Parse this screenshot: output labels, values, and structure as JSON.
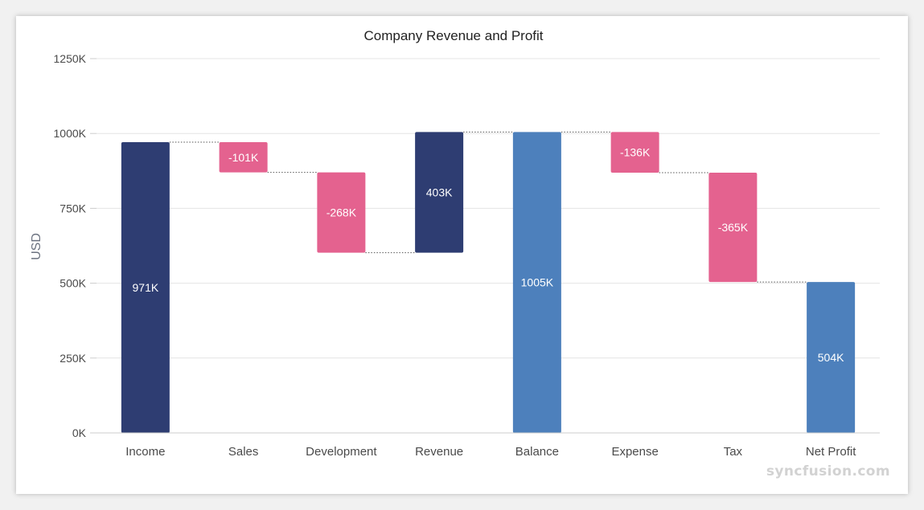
{
  "watermark": "syncfusion.com",
  "colors": {
    "positive": "#2e3d72",
    "negative": "#e4628f",
    "total": "#4d80bc",
    "grid": "#e4e4e4",
    "text": "#4a4a4a",
    "axis_title": "#6b7280"
  },
  "chart_data": {
    "type": "waterfall",
    "title": "Company Revenue and Profit",
    "xlabel": "",
    "ylabel": "USD",
    "ylim": [
      0,
      1250
    ],
    "yticks": [
      "0K",
      "250K",
      "500K",
      "750K",
      "1000K",
      "1250K"
    ],
    "ytick_values": [
      0,
      250,
      500,
      750,
      1000,
      1250
    ],
    "categories": [
      "Income",
      "Sales",
      "Development",
      "Revenue",
      "Balance",
      "Expense",
      "Tax",
      "Net Profit"
    ],
    "values": [
      971,
      -101,
      -268,
      403,
      1005,
      -136,
      -365,
      504
    ],
    "labels": [
      "971K",
      "-101K",
      "-268K",
      "403K",
      "1005K",
      "-136K",
      "-365K",
      "504K"
    ],
    "kinds": [
      "positive",
      "negative",
      "negative",
      "positive",
      "total",
      "negative",
      "negative",
      "total"
    ],
    "grid": true,
    "connectors": true,
    "legend": "none"
  }
}
